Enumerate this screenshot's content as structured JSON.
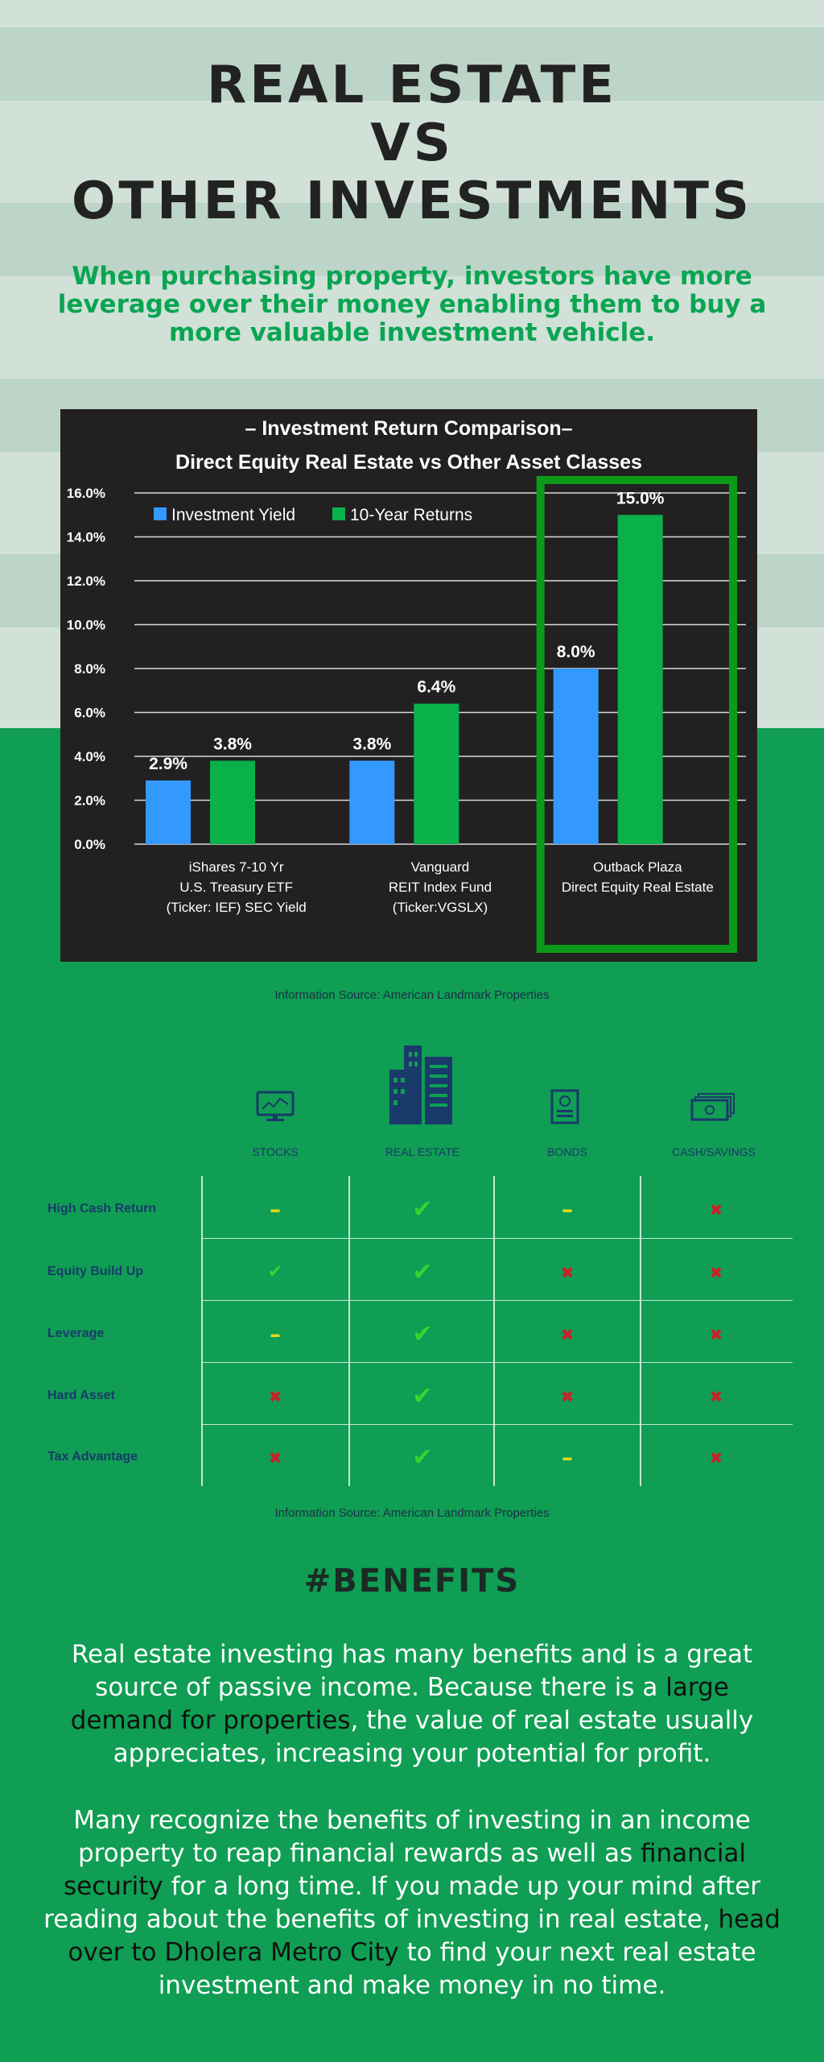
{
  "title_lines": [
    "REAL ESTATE",
    "VS",
    "OTHER INVESTMENTS"
  ],
  "subtitle": "When purchasing property, investors have more leverage over their money enabling them to buy a more valuable investment vehicle.",
  "colors": {
    "yield": "#3399ff",
    "returns": "#0ab04a",
    "highlight_box": "#0c9a1a",
    "panel": "#222021",
    "page_green": "#0f9e53"
  },
  "chart_data": {
    "type": "bar",
    "title_lines": [
      "– Investment Return Comparison–",
      "Direct Equity Real Estate vs Other Asset Classes"
    ],
    "categories": [
      [
        "iShares 7-10 Yr",
        "U.S. Treasury ETF",
        "(Ticker: IEF) SEC Yield"
      ],
      [
        "Vanguard",
        "REIT Index Fund",
        "(Ticker:VGSLX)"
      ],
      [
        "Outback Plaza",
        "Direct Equity Real Estate"
      ]
    ],
    "series": [
      {
        "name": "Investment Yield",
        "values": [
          2.9,
          3.8,
          8.0
        ],
        "labels": [
          "2.9%",
          "3.8%",
          "8.0%"
        ]
      },
      {
        "name": "10-Year Returns",
        "values": [
          3.8,
          6.4,
          15.0
        ],
        "labels": [
          "3.8%",
          "6.4%",
          "15.0%"
        ]
      }
    ],
    "ylim": [
      0,
      16
    ],
    "yticks": [
      0,
      2,
      4,
      6,
      8,
      10,
      12,
      14,
      16
    ],
    "ytick_labels": [
      "0.0%",
      "2.0%",
      "4.0%",
      "6.0%",
      "8.0%",
      "10.0%",
      "12.0%",
      "14.0%",
      "16.0%"
    ],
    "grid": true,
    "legend_position": "top-left",
    "highlighted_category": 2,
    "xlabel": "",
    "ylabel": ""
  },
  "source_text": "Information Source: American Landmark Properties",
  "comparison": {
    "columns": [
      {
        "label": "STOCKS",
        "icon": "stock-chart-monitor-icon"
      },
      {
        "label": "REAL ESTATE",
        "icon": "buildings-icon"
      },
      {
        "label": "BONDS",
        "icon": "bond-certificate-icon"
      },
      {
        "label": "CASH/SAVINGS",
        "icon": "cash-bills-icon"
      }
    ],
    "rows": [
      {
        "label": "High Cash Return",
        "marks": [
          "dash",
          "check",
          "dash",
          "x"
        ]
      },
      {
        "label": "Equity Build Up",
        "marks": [
          "check-small",
          "check",
          "x",
          "x"
        ]
      },
      {
        "label": "Leverage",
        "marks": [
          "dash",
          "check",
          "x",
          "x"
        ]
      },
      {
        "label": "Hard Asset",
        "marks": [
          "x",
          "check",
          "x",
          "x"
        ]
      },
      {
        "label": "Tax Advantage",
        "marks": [
          "x",
          "check",
          "dash",
          "x"
        ]
      }
    ],
    "symbols": {
      "check": "✔",
      "check-small": "✔",
      "dash": "–",
      "x": "✖"
    },
    "mark_colors": {
      "check": "#37d432",
      "dash": "#e3d718",
      "x": "#c9222a"
    }
  },
  "benefits": {
    "heading": "#BENEFITS",
    "p1_before": "Real estate investing has many benefits and is a great source of passive income. Because there is a ",
    "p1_link": "large demand for properties",
    "p1_after": ", the value of real estate usually appreciates, increasing your potential for profit.",
    "p2_before": "Many recognize the benefits of investing in an income property to reap financial rewards as well as ",
    "p2_link1": "financial security",
    "p2_mid": " for a long time. If you made up your mind after reading about the benefits of investing in real estate, ",
    "p2_link2": "head over to Dholera Metro City",
    "p2_after": " to find your next real estate investment and make money in no time."
  }
}
